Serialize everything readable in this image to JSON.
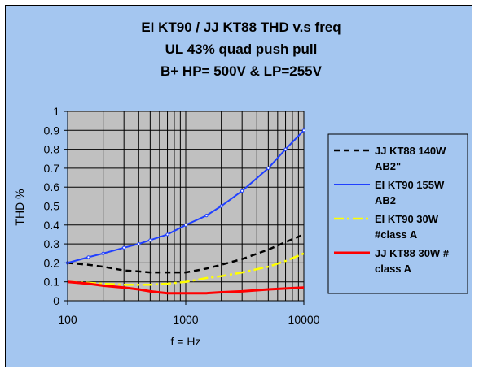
{
  "chart_data": {
    "type": "line",
    "title": [
      "EI KT90 / JJ KT88 THD v.s freq",
      "UL 43% quad push pull",
      "B+ HP= 500V & LP=255V"
    ],
    "xlabel": "f = Hz",
    "ylabel": "THD %",
    "xscale": "log",
    "xlim": [
      100,
      10000
    ],
    "ylim": [
      0,
      1
    ],
    "x_ticks": [
      "100",
      "1000",
      "10000"
    ],
    "y_ticks": [
      "0",
      "0.1",
      "0.2",
      "0.3",
      "0.4",
      "0.5",
      "0.6",
      "0.7",
      "0.8",
      "0.9",
      "1"
    ],
    "grid": true,
    "plot_background": "#c0c0c0",
    "chart_background": "#a4c6f0",
    "legend_position": "right",
    "series": [
      {
        "name": [
          "JJ KT88 140W",
          "AB2\""
        ],
        "color": "#000000",
        "style": "dashed",
        "x": [
          100,
          150,
          200,
          300,
          400,
          500,
          700,
          1000,
          1500,
          2000,
          3000,
          5000,
          7000,
          10000
        ],
        "y": [
          0.2,
          0.19,
          0.18,
          0.16,
          0.155,
          0.15,
          0.15,
          0.15,
          0.17,
          0.19,
          0.22,
          0.27,
          0.31,
          0.35
        ]
      },
      {
        "name": [
          "EI KT90 155W",
          "AB2"
        ],
        "color": "#2040ff",
        "style": "solid-marker",
        "x": [
          100,
          150,
          200,
          300,
          400,
          500,
          700,
          1000,
          1500,
          2000,
          3000,
          5000,
          7000,
          10000
        ],
        "y": [
          0.2,
          0.23,
          0.25,
          0.28,
          0.3,
          0.32,
          0.35,
          0.4,
          0.45,
          0.5,
          0.58,
          0.7,
          0.8,
          0.9
        ]
      },
      {
        "name": [
          "EI KT90 30W",
          "#class A"
        ],
        "color": "#ffff00",
        "style": "dashdot",
        "x": [
          100,
          150,
          200,
          300,
          400,
          500,
          700,
          1000,
          1500,
          2000,
          3000,
          5000,
          7000,
          10000
        ],
        "y": [
          0.1,
          0.095,
          0.09,
          0.085,
          0.085,
          0.085,
          0.09,
          0.1,
          0.12,
          0.13,
          0.15,
          0.18,
          0.21,
          0.25
        ]
      },
      {
        "name": [
          "JJ KT88 30W #",
          "class A"
        ],
        "color": "#ff0000",
        "style": "solid-thick",
        "x": [
          100,
          150,
          200,
          300,
          400,
          500,
          700,
          1000,
          1500,
          2000,
          3000,
          5000,
          7000,
          10000
        ],
        "y": [
          0.1,
          0.09,
          0.08,
          0.07,
          0.06,
          0.05,
          0.04,
          0.04,
          0.04,
          0.045,
          0.05,
          0.06,
          0.065,
          0.07
        ]
      }
    ]
  }
}
